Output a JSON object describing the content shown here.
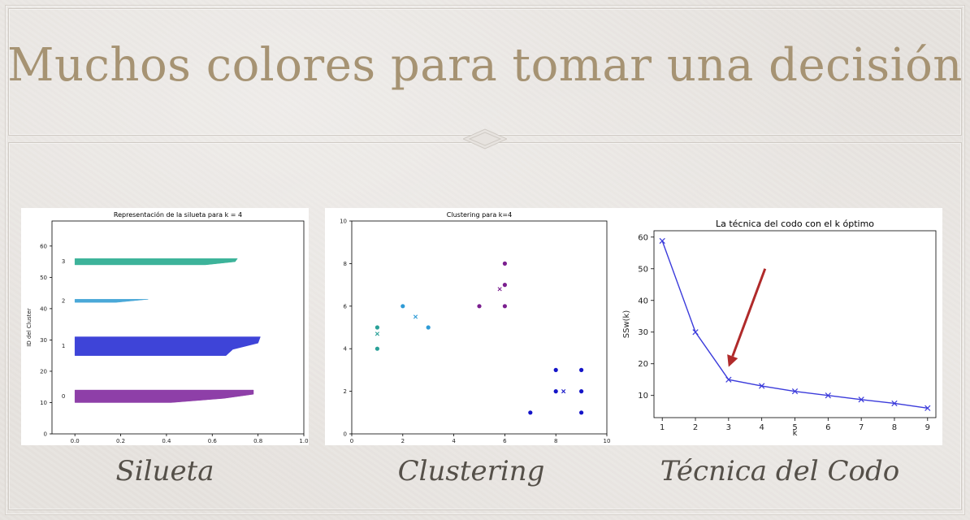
{
  "slide": {
    "title": "Muchos colores para tomar una decisión",
    "captions": [
      "Silueta",
      "Clustering",
      "Técnica del Codo"
    ]
  },
  "chart_data": [
    {
      "type": "bar",
      "title": "Representación de la silueta para k = 4",
      "xlabel": "",
      "ylabel": "ID del Cluster",
      "xlim": [
        -0.1,
        1.0
      ],
      "ylim": [
        0,
        68
      ],
      "x_ticks": [
        "0.0",
        "0.2",
        "0.4",
        "0.6",
        "0.8",
        "1.0"
      ],
      "x_tick_values": [
        0.0,
        0.2,
        0.4,
        0.6,
        0.8,
        1.0
      ],
      "y_ticks": [
        "0",
        "10",
        "20",
        "30",
        "40",
        "50",
        "60"
      ],
      "y_tick_values": [
        0,
        10,
        20,
        30,
        40,
        50,
        60
      ],
      "clusters": [
        {
          "label": "0",
          "color": "#8e3fa8",
          "y_range": [
            10,
            14
          ],
          "profile": [
            [
              0.0,
              10
            ],
            [
              0.78,
              14
            ]
          ],
          "silhouettes": [
            0.78,
            0.78,
            0.65,
            0.42
          ]
        },
        {
          "label": "1",
          "color": "#3e44d8",
          "y_range": [
            25,
            31
          ],
          "profile": [
            [
              0.0,
              25
            ],
            [
              0.81,
              31
            ]
          ],
          "silhouettes": [
            0.81,
            0.8,
            0.69,
            0.66
          ]
        },
        {
          "label": "2",
          "color": "#4aa8d8",
          "y_range": [
            42,
            43
          ],
          "profile": [
            [
              0.0,
              42
            ],
            [
              0.32,
              43
            ]
          ],
          "silhouettes": [
            0.32,
            0.18
          ]
        },
        {
          "label": "3",
          "color": "#3db39a",
          "y_range": [
            54,
            56
          ],
          "profile": [
            [
              0.0,
              54
            ],
            [
              0.71,
              56
            ]
          ],
          "silhouettes": [
            0.71,
            0.7,
            0.57
          ]
        }
      ]
    },
    {
      "type": "scatter",
      "title": "Clustering para k=4",
      "xlabel": "",
      "ylabel": "",
      "xlim": [
        0,
        10
      ],
      "ylim": [
        0,
        10
      ],
      "x_ticks": [
        "0",
        "2",
        "4",
        "6",
        "8",
        "10"
      ],
      "x_tick_values": [
        0,
        2,
        4,
        6,
        8,
        10
      ],
      "y_ticks": [
        "0",
        "2",
        "4",
        "6",
        "8",
        "10"
      ],
      "y_tick_values": [
        0,
        2,
        4,
        6,
        8,
        10
      ],
      "series": [
        {
          "color": "#2aa198",
          "points": [
            [
              1,
              5
            ],
            [
              1,
              4
            ]
          ],
          "centroid": [
            1,
            4.7
          ]
        },
        {
          "color": "#2f9bd6",
          "points": [
            [
              2,
              6
            ],
            [
              3,
              5
            ]
          ],
          "centroid": [
            2.5,
            5.5
          ]
        },
        {
          "color": "#7b1f8f",
          "points": [
            [
              5,
              6
            ],
            [
              6,
              8
            ],
            [
              6,
              7
            ],
            [
              6,
              6
            ]
          ],
          "centroid": [
            5.8,
            6.8
          ]
        },
        {
          "color": "#1414c8",
          "points": [
            [
              7,
              1
            ],
            [
              8,
              3
            ],
            [
              8,
              2
            ],
            [
              9,
              3
            ],
            [
              9,
              2
            ],
            [
              9,
              1
            ]
          ],
          "centroid": [
            8.3,
            2
          ]
        }
      ]
    },
    {
      "type": "line",
      "title": "La técnica del codo con el k óptimo",
      "xlabel": "k",
      "ylabel": "SSw(k)",
      "xlim": [
        0.75,
        9.25
      ],
      "ylim": [
        3,
        62
      ],
      "x_ticks": [
        "1",
        "2",
        "3",
        "4",
        "5",
        "6",
        "7",
        "8",
        "9"
      ],
      "x_tick_values": [
        1,
        2,
        3,
        4,
        5,
        6,
        7,
        8,
        9
      ],
      "y_ticks": [
        "10",
        "20",
        "30",
        "40",
        "50",
        "60"
      ],
      "y_tick_values": [
        10,
        20,
        30,
        40,
        50,
        60
      ],
      "x": [
        1,
        2,
        3,
        4,
        5,
        6,
        7,
        8,
        9
      ],
      "values": [
        58.8,
        30,
        15,
        13,
        11.3,
        10,
        8.7,
        7.5,
        6
      ],
      "color": "#3b3bdb",
      "marker": "x",
      "annotation": {
        "type": "arrow",
        "color": "#b02a2a",
        "from": [
          4.1,
          50
        ],
        "to": [
          3.0,
          19
        ]
      }
    }
  ]
}
